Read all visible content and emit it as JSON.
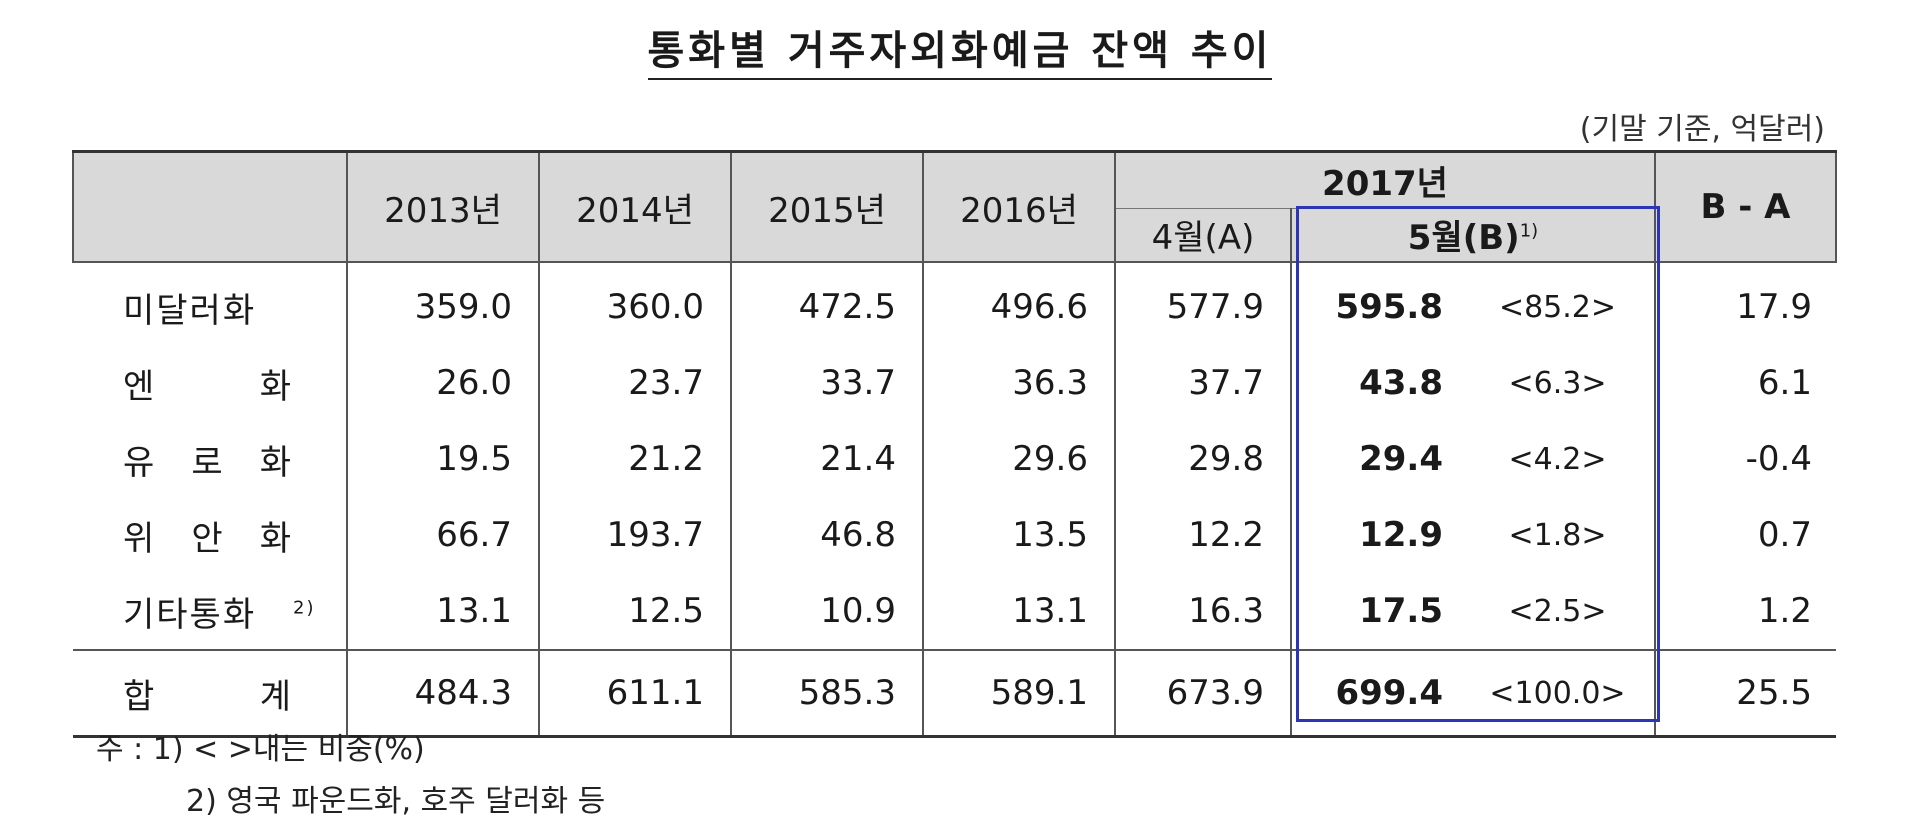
{
  "title": "통화별 거주자외화예금 잔액 추이",
  "unit": "(기말 기준, 억달러)",
  "headers": {
    "years": [
      "2013년",
      "2014년",
      "2015년",
      "2016년"
    ],
    "year_2017": "2017년",
    "apr": "4월(A)",
    "may": "5월(B)",
    "may_sup": "1)",
    "diff": "B - A"
  },
  "rows": [
    {
      "label": "미달러화",
      "sup": "",
      "values": [
        "359.0",
        "360.0",
        "472.5",
        "496.6",
        "577.9"
      ],
      "b": "595.8",
      "pct": "<85.2>",
      "diff": "17.9"
    },
    {
      "label": "엔 화",
      "sup": "",
      "values": [
        "26.0",
        "23.7",
        "33.7",
        "36.3",
        "37.7"
      ],
      "b": "43.8",
      "pct": "<6.3>",
      "diff": "6.1"
    },
    {
      "label": "유 로 화",
      "sup": "",
      "values": [
        "19.5",
        "21.2",
        "21.4",
        "29.6",
        "29.8"
      ],
      "b": "29.4",
      "pct": "<4.2>",
      "diff": "-0.4"
    },
    {
      "label": "위 안 화",
      "sup": "",
      "values": [
        "66.7",
        "193.7",
        "46.8",
        "13.5",
        "12.2"
      ],
      "b": "12.9",
      "pct": "<1.8>",
      "diff": "0.7"
    },
    {
      "label": "기타통화",
      "sup": "2)",
      "values": [
        "13.1",
        "12.5",
        "10.9",
        "13.1",
        "16.3"
      ],
      "b": "17.5",
      "pct": "<2.5>",
      "diff": "1.2"
    }
  ],
  "total": {
    "label": "합 계",
    "values": [
      "484.3",
      "611.1",
      "585.3",
      "589.1",
      "673.9"
    ],
    "b": "699.4",
    "pct": "<100.0>",
    "diff": "25.5"
  },
  "notes": {
    "note1": "주 : 1) <    >내는 비중(%)",
    "note2": "2) 영국 파운드화, 호주 달러화 등"
  },
  "colors": {
    "highlight_border": "#2b35b5",
    "header_bg": "#d9d9d9"
  }
}
